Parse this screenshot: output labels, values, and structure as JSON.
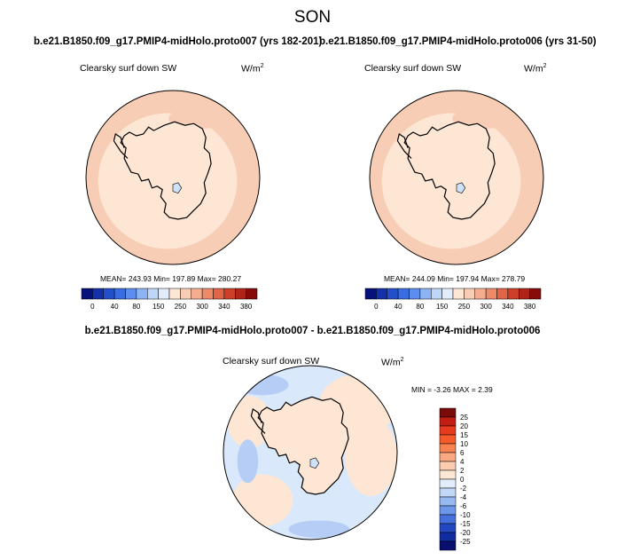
{
  "page": {
    "season": "SON",
    "unit_base": "W/m",
    "unit_exp": "2"
  },
  "colors": {
    "antarctica": "#FDE6D3",
    "ocean_top": "#F8CDB5",
    "ocean_diff": "#D9E8FB",
    "coast": "#000000"
  },
  "chart_data": [
    {
      "type": "polar_map",
      "title": "b.e21.B1850.f09_g17.PMIP4-midHolo.proto007 (yrs 182-201)",
      "variable": "Clearsky surf down SW",
      "stats": {
        "mean_label": "MEAN=",
        "mean": "243.93",
        "min_label": "Min=",
        "min": "197.89",
        "max_label": "Max=",
        "max": "280.27"
      },
      "colorbar_labels": [
        "0",
        "40",
        "80",
        "150",
        "250",
        "300",
        "340",
        "380"
      ],
      "colorbar_colors": [
        "#08117A",
        "#1530A8",
        "#2350C8",
        "#3A6DE0",
        "#5C8EEE",
        "#8CB4F4",
        "#BED6F8",
        "#E3ECFA",
        "#FDE6D3",
        "#F8CDB5",
        "#F3AE8F",
        "#EC8A6A",
        "#E06446",
        "#CD3F28",
        "#B02418",
        "#870B0B"
      ]
    },
    {
      "type": "polar_map",
      "title": "b.e21.B1850.f09_g17.PMIP4-midHolo.proto006 (yrs 31-50)",
      "variable": "Clearsky surf down SW",
      "stats": {
        "mean_label": "MEAN=",
        "mean": "244.09",
        "min_label": "Min=",
        "min": "197.94",
        "max_label": "Max=",
        "max": "278.79"
      },
      "colorbar_labels": [
        "0",
        "40",
        "80",
        "150",
        "250",
        "300",
        "340",
        "380"
      ],
      "colorbar_colors": [
        "#08117A",
        "#1530A8",
        "#2350C8",
        "#3A6DE0",
        "#5C8EEE",
        "#8CB4F4",
        "#BED6F8",
        "#E3ECFA",
        "#FDE6D3",
        "#F8CDB5",
        "#F3AE8F",
        "#EC8A6A",
        "#E06446",
        "#CD3F28",
        "#B02418",
        "#870B0B"
      ]
    },
    {
      "type": "polar_map_difference",
      "title": "b.e21.B1850.f09_g17.PMIP4-midHolo.proto007 - b.e21.B1850.f09_g17.PMIP4-midHolo.proto006",
      "variable": "Clearsky surf down SW",
      "stats": {
        "min_label": "MIN =",
        "min": "-3.26",
        "max_label": "MAX =",
        "max": "2.39"
      },
      "colorbar_labels": [
        "25",
        "20",
        "15",
        "10",
        "6",
        "4",
        "2",
        "0",
        "-2",
        "-4",
        "-6",
        "-10",
        "-15",
        "-20",
        "-25"
      ],
      "colorbar_colors": [
        "#7A0B0B",
        "#C21E14",
        "#E83A1E",
        "#F55A2A",
        "#F88350",
        "#FAA982",
        "#FCCCAF",
        "#FDE8D6",
        "#E2EDFB",
        "#C1D7F7",
        "#96B9F2",
        "#6E96EA",
        "#4670DD",
        "#2448C2",
        "#112C9E",
        "#080F6E"
      ]
    }
  ]
}
